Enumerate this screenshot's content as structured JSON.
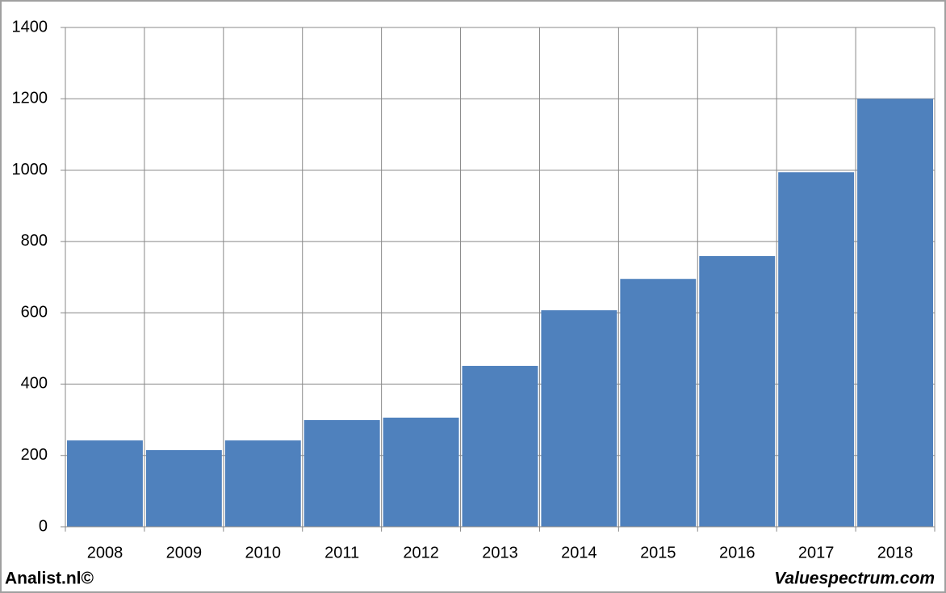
{
  "chart_data": {
    "type": "bar",
    "categories": [
      "2008",
      "2009",
      "2010",
      "2011",
      "2012",
      "2013",
      "2014",
      "2015",
      "2016",
      "2017",
      "2018"
    ],
    "values": [
      242,
      215,
      242,
      299,
      306,
      451,
      607,
      695,
      759,
      994,
      1200
    ],
    "color": "#4f81bd",
    "ylim": [
      0,
      1400
    ],
    "yticks": [
      0,
      200,
      400,
      600,
      800,
      1000,
      1200,
      1400
    ],
    "grid": true
  },
  "footer": {
    "left": "Analist.nl©",
    "right": "Valuespectrum.com"
  }
}
